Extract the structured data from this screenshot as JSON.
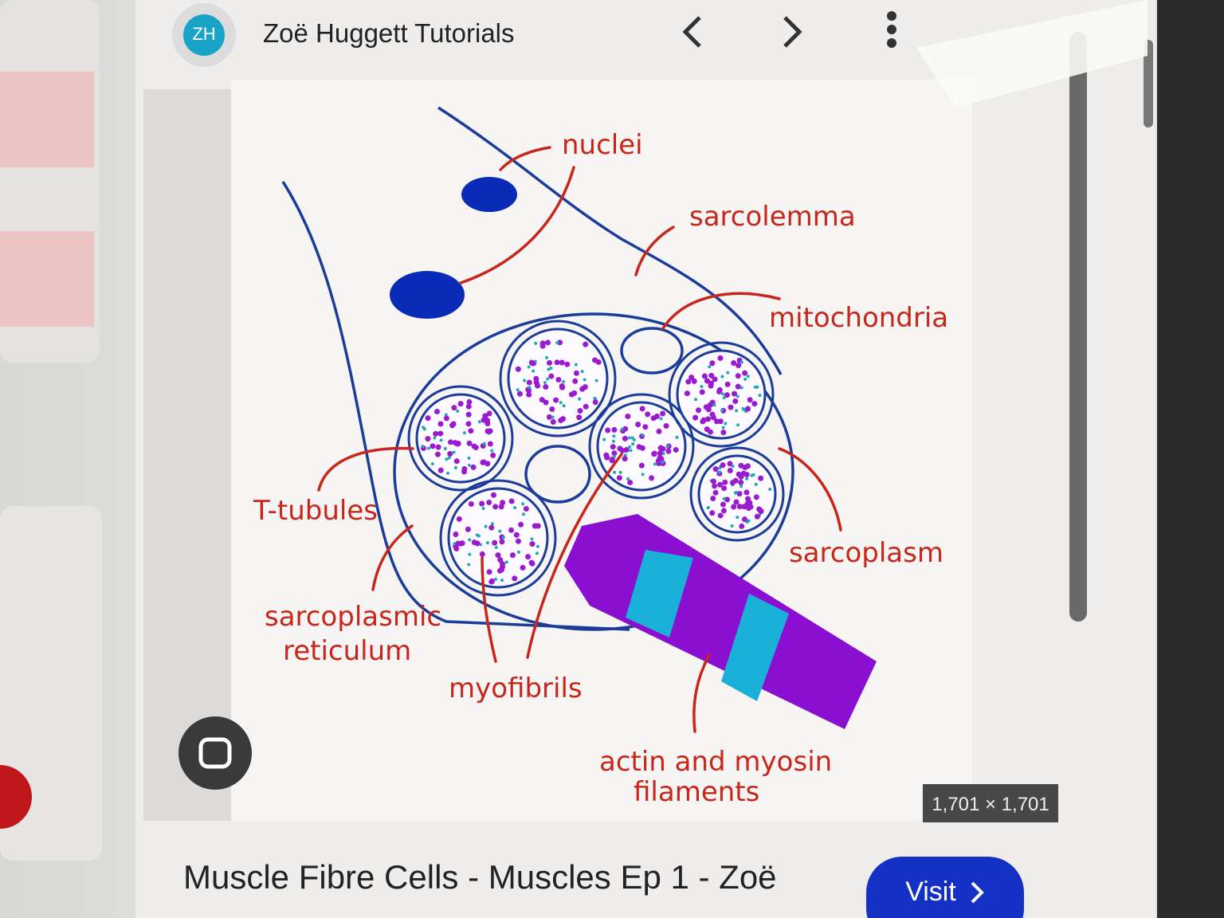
{
  "header": {
    "logo": "ZH",
    "channel": "Zoë Huggett Tutorials"
  },
  "image": {
    "labels": {
      "nuclei": "nuclei",
      "sarcolemma": "sarcolemma",
      "mitochondria": "mitochondria",
      "t_tubules": "T-tubules",
      "sarcoplasm": "sarcoplasm",
      "sarcoplasmic_reticulum": [
        "sarcoplasmic",
        "reticulum"
      ],
      "myofibrils": "myofibrils",
      "actin_myosin": [
        "actin and myosin",
        "filaments"
      ]
    },
    "dimensions": "1,701 × 1,701"
  },
  "result": {
    "title": "Muscle Fibre Cells - Muscles Ep 1 - Zoë",
    "button": "Visit"
  }
}
